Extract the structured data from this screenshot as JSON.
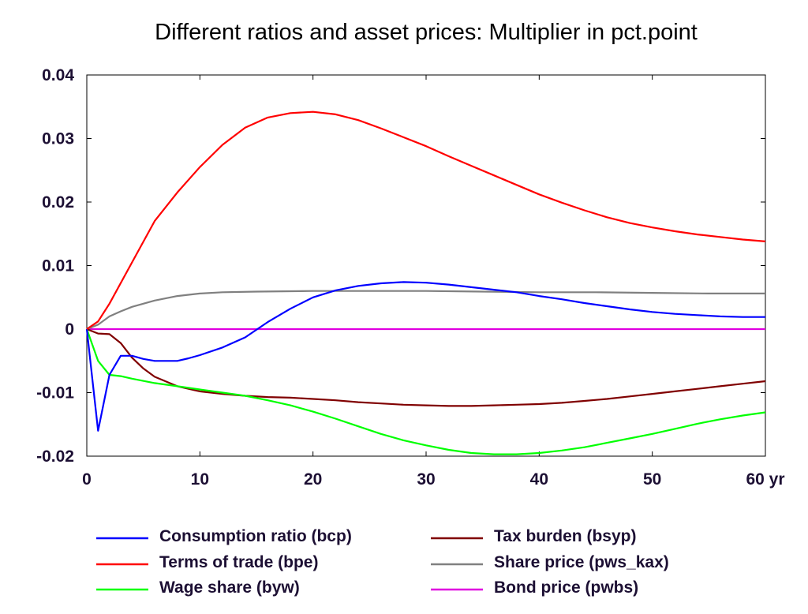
{
  "chart_data": {
    "type": "line",
    "title": "Different ratios and asset prices: Multiplier in pct.point",
    "xlim": [
      0,
      60
    ],
    "ylim": [
      -0.02,
      0.04
    ],
    "x_ticks": [
      0,
      10,
      20,
      30,
      40,
      50,
      60
    ],
    "x_tick_labels": [
      "0",
      "10",
      "20",
      "30",
      "40",
      "50",
      "60 yr"
    ],
    "y_ticks": [
      -0.02,
      -0.01,
      0,
      0.01,
      0.02,
      0.03,
      0.04
    ],
    "y_tick_labels": [
      "-0.02",
      "-0.01",
      "0",
      "0.01",
      "0.02",
      "0.03",
      "0.04"
    ],
    "grid": false,
    "legend_position": "bottom",
    "series": [
      {
        "name": "Consumption ratio (bcp)",
        "color": "#0000ff",
        "x": [
          0,
          1,
          2,
          3,
          4,
          5,
          6,
          7,
          8,
          9,
          10,
          12,
          14,
          16,
          18,
          20,
          22,
          24,
          26,
          28,
          30,
          32,
          34,
          36,
          38,
          40,
          42,
          44,
          46,
          48,
          50,
          52,
          54,
          56,
          58,
          60
        ],
        "y": [
          0,
          -0.016,
          -0.0072,
          -0.0042,
          -0.0042,
          -0.0047,
          -0.005,
          -0.005,
          -0.005,
          -0.0046,
          -0.0041,
          -0.0029,
          -0.0013,
          0.0011,
          0.0032,
          0.005,
          0.0061,
          0.0068,
          0.0072,
          0.0074,
          0.0073,
          0.007,
          0.0066,
          0.0062,
          0.0058,
          0.0052,
          0.0047,
          0.0041,
          0.0036,
          0.0031,
          0.0027,
          0.0024,
          0.0022,
          0.002,
          0.0019,
          0.0019
        ]
      },
      {
        "name": "Terms of trade (bpe)",
        "color": "#ff0000",
        "x": [
          0,
          1,
          2,
          4,
          6,
          8,
          10,
          12,
          14,
          16,
          18,
          20,
          22,
          24,
          26,
          28,
          30,
          32,
          34,
          36,
          38,
          40,
          42,
          44,
          46,
          48,
          50,
          52,
          54,
          56,
          58,
          60
        ],
        "y": [
          0,
          0.0012,
          0.004,
          0.0105,
          0.017,
          0.0215,
          0.0255,
          0.029,
          0.0317,
          0.0333,
          0.034,
          0.0342,
          0.0338,
          0.0329,
          0.0316,
          0.0302,
          0.0288,
          0.0272,
          0.0257,
          0.0242,
          0.0227,
          0.0212,
          0.0199,
          0.0187,
          0.0176,
          0.0167,
          0.016,
          0.0154,
          0.0149,
          0.0145,
          0.0141,
          0.0138
        ]
      },
      {
        "name": "Wage share (byw)",
        "color": "#00ff00",
        "x": [
          0,
          1,
          2,
          3,
          4,
          6,
          8,
          10,
          12,
          14,
          16,
          18,
          20,
          22,
          24,
          26,
          28,
          30,
          32,
          34,
          36,
          38,
          40,
          42,
          44,
          46,
          48,
          50,
          52,
          54,
          56,
          58,
          60
        ],
        "y": [
          0,
          -0.005,
          -0.0072,
          -0.0074,
          -0.0078,
          -0.0085,
          -0.009,
          -0.0095,
          -0.01,
          -0.0105,
          -0.0112,
          -0.012,
          -0.013,
          -0.0141,
          -0.0153,
          -0.0165,
          -0.0175,
          -0.0183,
          -0.019,
          -0.0195,
          -0.0197,
          -0.0197,
          -0.0195,
          -0.0191,
          -0.0186,
          -0.0179,
          -0.0172,
          -0.0165,
          -0.0157,
          -0.0149,
          -0.0142,
          -0.0136,
          -0.0131
        ]
      },
      {
        "name": "Tax burden (bsyp)",
        "color": "#800000",
        "x": [
          0,
          1,
          2,
          3,
          4,
          5,
          6,
          8,
          10,
          12,
          14,
          16,
          18,
          20,
          22,
          24,
          26,
          28,
          30,
          32,
          34,
          36,
          38,
          40,
          42,
          44,
          46,
          48,
          50,
          52,
          54,
          56,
          58,
          60
        ],
        "y": [
          0,
          -0.0007,
          -0.0008,
          -0.0022,
          -0.0045,
          -0.0062,
          -0.0075,
          -0.009,
          -0.0098,
          -0.0102,
          -0.0105,
          -0.0107,
          -0.0108,
          -0.011,
          -0.0112,
          -0.0115,
          -0.0117,
          -0.0119,
          -0.012,
          -0.0121,
          -0.0121,
          -0.012,
          -0.0119,
          -0.0118,
          -0.0116,
          -0.0113,
          -0.011,
          -0.0106,
          -0.0102,
          -0.0098,
          -0.0094,
          -0.009,
          -0.0086,
          -0.0082
        ]
      },
      {
        "name": "Share price (pws_kax)",
        "color": "#808080",
        "x": [
          0,
          1,
          2,
          3,
          4,
          6,
          8,
          10,
          12,
          15,
          20,
          25,
          30,
          35,
          40,
          45,
          50,
          55,
          60
        ],
        "y": [
          0,
          0.0007,
          0.002,
          0.0028,
          0.0035,
          0.0045,
          0.0052,
          0.0056,
          0.0058,
          0.0059,
          0.006,
          0.006,
          0.006,
          0.0059,
          0.0058,
          0.0058,
          0.0057,
          0.0056,
          0.0056
        ]
      },
      {
        "name": "Bond price (pwbs)",
        "color": "#e000e0",
        "x": [
          0,
          60
        ],
        "y": [
          0,
          0
        ]
      }
    ]
  }
}
